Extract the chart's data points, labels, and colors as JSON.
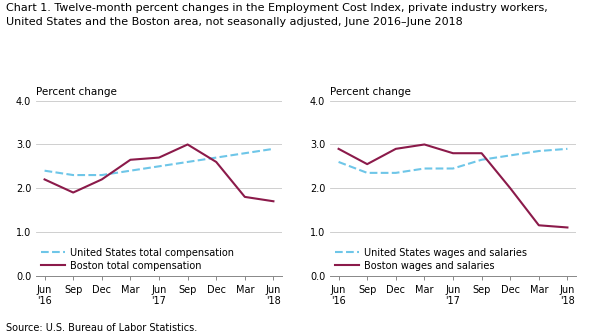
{
  "title": "Chart 1. Twelve-month percent changes in the Employment Cost Index, private industry workers,\nUnited States and the Boston area, not seasonally adjusted, June 2016–June 2018",
  "source": "Source: U.S. Bureau of Labor Statistics.",
  "ylabel": "Percent change",
  "x_labels": [
    "Jun\n'16",
    "Sep",
    "Dec",
    "Mar",
    "Jun\n'17",
    "Sep",
    "Dec",
    "Mar",
    "Jun\n'18"
  ],
  "ylim": [
    0.0,
    4.0
  ],
  "yticks": [
    0.0,
    1.0,
    2.0,
    3.0,
    4.0
  ],
  "left_chart": {
    "us_total_comp": [
      2.4,
      2.3,
      2.3,
      2.4,
      2.5,
      2.6,
      2.7,
      2.8,
      2.9
    ],
    "boston_total_comp": [
      2.2,
      1.9,
      2.2,
      2.65,
      2.7,
      3.0,
      2.6,
      1.8,
      1.7
    ],
    "us_label": "United States total compensation",
    "boston_label": "Boston total compensation"
  },
  "right_chart": {
    "us_wages": [
      2.6,
      2.35,
      2.35,
      2.45,
      2.45,
      2.65,
      2.75,
      2.85,
      2.9
    ],
    "boston_wages": [
      2.9,
      2.55,
      2.9,
      3.0,
      2.8,
      2.8,
      2.0,
      1.15,
      1.1
    ],
    "us_label": "United States wages and salaries",
    "boston_label": "Boston wages and salaries"
  },
  "us_color": "#6ec6e8",
  "boston_color": "#8b1a4a",
  "us_linestyle": "--",
  "boston_linestyle": "-",
  "linewidth": 1.5,
  "grid_color": "#c8c8c8",
  "bg_color": "#ffffff",
  "title_fontsize": 8.0,
  "label_fontsize": 7.5,
  "tick_fontsize": 7.0,
  "legend_fontsize": 7.0,
  "source_fontsize": 7.0
}
